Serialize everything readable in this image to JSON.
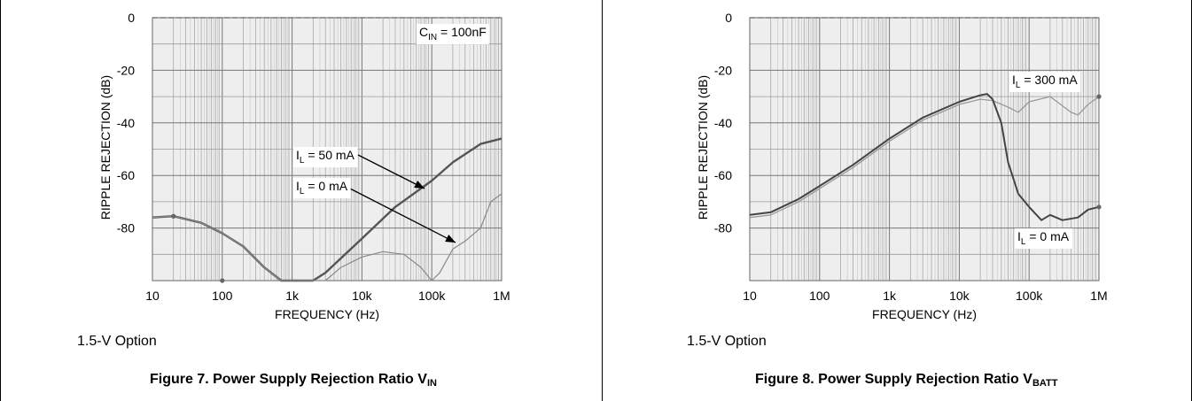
{
  "chart_data": [
    {
      "type": "line",
      "xlabel": "FREQUENCY (Hz)",
      "ylabel": "RIPPLE REJECTION (dB)",
      "xscale": "log",
      "xlim": [
        10,
        1000000
      ],
      "ylim": [
        -100,
        0
      ],
      "xticks": [
        "10",
        "100",
        "1k",
        "10k",
        "100k",
        "1M"
      ],
      "yticks": [
        "0",
        "-20",
        "-40",
        "-60",
        "-80"
      ],
      "grid": true,
      "annotations": [
        {
          "base": "C",
          "sub": "IN",
          "rest": " = 100nF"
        },
        {
          "base": "I",
          "sub": "L",
          "rest": " = 50 mA"
        },
        {
          "base": "I",
          "sub": "L",
          "rest": " = 0 mA"
        }
      ],
      "series": [
        {
          "x": [
            10,
            20,
            50,
            100,
            200,
            400,
            700,
            1000,
            2000,
            3000,
            10000,
            30000,
            100000,
            200000,
            500000,
            1000000
          ],
          "y": [
            -76,
            -75.5,
            -78,
            -82,
            -87,
            -95,
            -100,
            -100,
            -100,
            -97,
            -84,
            -72,
            -62,
            -55,
            -48,
            -46
          ]
        },
        {
          "x": [
            10,
            20,
            50,
            100,
            200,
            400,
            700,
            1000,
            3000,
            5000,
            10000,
            20000,
            40000,
            70000,
            100000,
            130000,
            200000,
            300000,
            500000,
            700000,
            1000000
          ],
          "y": [
            -76,
            -75.5,
            -78,
            -82,
            -87,
            -95,
            -100,
            -100,
            -100,
            -95,
            -91,
            -89,
            -90,
            -95,
            -100,
            -97,
            -88,
            -85,
            -80,
            -70,
            -67
          ]
        }
      ],
      "option_label": "1.5-V Option",
      "caption_main": "Figure 7. Power Supply Rejection Ratio V",
      "caption_sub": "IN"
    },
    {
      "type": "line",
      "xlabel": "FREQUENCY (Hz)",
      "ylabel": "RIPPLE REJECTION (dB)",
      "xscale": "log",
      "xlim": [
        10,
        1000000
      ],
      "ylim": [
        -100,
        0
      ],
      "xticks": [
        "10",
        "100",
        "1k",
        "10k",
        "100k",
        "1M"
      ],
      "yticks": [
        "0",
        "-20",
        "-40",
        "-60",
        "-80"
      ],
      "grid": true,
      "annotations": [
        {
          "base": "I",
          "sub": "L",
          "rest": " = 300 mA"
        },
        {
          "base": "I",
          "sub": "L",
          "rest": " = 0 mA"
        }
      ],
      "series": [
        {
          "x": [
            10,
            20,
            50,
            100,
            300,
            1000,
            3000,
            10000,
            20000,
            30000,
            50000,
            70000,
            100000,
            200000,
            400000,
            500000,
            700000,
            1000000
          ],
          "y": [
            -76,
            -75,
            -70,
            -65,
            -57,
            -47,
            -39,
            -33,
            -31,
            -31.5,
            -34,
            -36,
            -32,
            -30,
            -36,
            -37,
            -33,
            -30
          ]
        },
        {
          "x": [
            10,
            20,
            50,
            100,
            300,
            1000,
            3000,
            10000,
            20000,
            25000,
            30000,
            40000,
            50000,
            70000,
            100000,
            150000,
            200000,
            300000,
            500000,
            700000,
            1000000
          ],
          "y": [
            -75,
            -74,
            -69,
            -64,
            -56,
            -46,
            -38,
            -32,
            -29.5,
            -29,
            -31,
            -40,
            -55,
            -67,
            -72,
            -77,
            -75,
            -77,
            -76,
            -73,
            -72
          ]
        }
      ],
      "option_label": "1.5-V Option",
      "caption_main": "Figure 8. Power Supply Rejection Ratio V",
      "caption_sub": "BATT"
    }
  ]
}
